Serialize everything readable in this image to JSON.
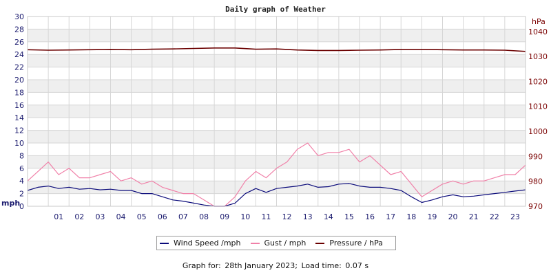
{
  "chart_data": {
    "type": "line",
    "title": "Daily graph of Weather",
    "ylabel_left": "mph",
    "ylabel_right": "hPa",
    "ylim_left": [
      0,
      30
    ],
    "ylim_right": [
      970,
      1046
    ],
    "yticks_left": [
      "0",
      "2",
      "4",
      "6",
      "8",
      "10",
      "12",
      "14",
      "16",
      "18",
      "20",
      "22",
      "24",
      "26",
      "28",
      "30"
    ],
    "yticks_right": [
      "970",
      "980",
      "990",
      "1000",
      "1010",
      "1020",
      "1030",
      "1040"
    ],
    "x_range": [
      0,
      24
    ],
    "xticks": [
      "01",
      "02",
      "03",
      "04",
      "05",
      "06",
      "07",
      "08",
      "09",
      "10",
      "11",
      "12",
      "13",
      "14",
      "15",
      "16",
      "17",
      "18",
      "19",
      "20",
      "21",
      "22",
      "23"
    ],
    "grid": true,
    "legend_position": "bottom",
    "series": [
      {
        "name": "Wind Speed /mph",
        "axis": "left",
        "color": "#0a0a7a",
        "x": [
          0,
          0.5,
          1,
          1.5,
          2,
          2.5,
          3,
          3.5,
          4,
          4.5,
          5,
          5.5,
          6,
          6.5,
          7,
          7.5,
          8,
          8.5,
          9,
          9.5,
          10,
          10.5,
          11,
          11.5,
          12,
          12.5,
          13,
          13.5,
          14,
          14.5,
          15,
          15.5,
          16,
          16.5,
          17,
          17.5,
          18,
          18.5,
          19,
          19.5,
          20,
          20.5,
          21,
          21.5,
          22,
          22.5,
          23,
          23.5,
          24
        ],
        "values": [
          2.5,
          3.0,
          3.2,
          2.8,
          3.0,
          2.7,
          2.8,
          2.6,
          2.7,
          2.5,
          2.5,
          2.0,
          2.0,
          1.5,
          1.0,
          0.8,
          0.5,
          0.2,
          0.0,
          0.0,
          0.5,
          2.0,
          2.8,
          2.2,
          2.8,
          3.0,
          3.2,
          3.5,
          3.0,
          3.1,
          3.5,
          3.6,
          3.2,
          3.0,
          3.0,
          2.8,
          2.5,
          1.5,
          0.6,
          1.0,
          1.5,
          1.8,
          1.5,
          1.6,
          1.8,
          2.0,
          2.2,
          2.4,
          2.6
        ]
      },
      {
        "name": "Gust / mph",
        "axis": "left",
        "color": "#f080a8",
        "x": [
          0,
          0.5,
          1,
          1.5,
          2,
          2.5,
          3,
          3.5,
          4,
          4.5,
          5,
          5.5,
          6,
          6.5,
          7,
          7.5,
          8,
          8.5,
          9,
          9.5,
          10,
          10.5,
          11,
          11.5,
          12,
          12.5,
          13,
          13.5,
          14,
          14.5,
          15,
          15.5,
          16,
          16.5,
          17,
          17.5,
          18,
          18.5,
          19,
          19.5,
          20,
          20.5,
          21,
          21.5,
          22,
          22.5,
          23,
          23.5,
          24
        ],
        "values": [
          4.0,
          5.5,
          7.0,
          5.0,
          6.0,
          4.5,
          4.5,
          5.0,
          5.5,
          4.0,
          4.5,
          3.5,
          4.0,
          3.0,
          2.5,
          2.0,
          2.0,
          1.0,
          0.0,
          0.0,
          1.5,
          4.0,
          5.5,
          4.5,
          6.0,
          7.0,
          9.0,
          10.0,
          8.0,
          8.5,
          8.5,
          9.0,
          7.0,
          8.0,
          6.5,
          5.0,
          5.5,
          3.5,
          1.5,
          2.5,
          3.5,
          4.0,
          3.5,
          4.0,
          4.0,
          4.5,
          5.0,
          5.0,
          6.5
        ]
      },
      {
        "name": "Pressure / hPa",
        "axis": "right",
        "color": "#6b0000",
        "x": [
          0,
          1,
          2,
          3,
          4,
          5,
          6,
          7,
          8,
          9,
          10,
          11,
          12,
          13,
          14,
          15,
          16,
          17,
          18,
          19,
          20,
          21,
          22,
          23,
          24
        ],
        "values": [
          1032.7,
          1032.5,
          1032.6,
          1032.7,
          1032.8,
          1032.7,
          1032.9,
          1033.0,
          1033.2,
          1033.4,
          1033.4,
          1032.9,
          1033.0,
          1032.6,
          1032.4,
          1032.4,
          1032.5,
          1032.6,
          1032.8,
          1032.8,
          1032.7,
          1032.6,
          1032.6,
          1032.5,
          1032.0
        ]
      }
    ]
  },
  "legend": {
    "items": [
      {
        "label": "Wind Speed /mph",
        "color": "#0a0a7a"
      },
      {
        "label": "Gust / mph",
        "color": "#f080a8"
      },
      {
        "label": "Pressure / hPa",
        "color": "#6b0000"
      }
    ]
  },
  "footer": {
    "prefix": "Graph for:",
    "date": "28th January 2023;",
    "load_label": "Load time:",
    "load_value": "0.07 s"
  }
}
